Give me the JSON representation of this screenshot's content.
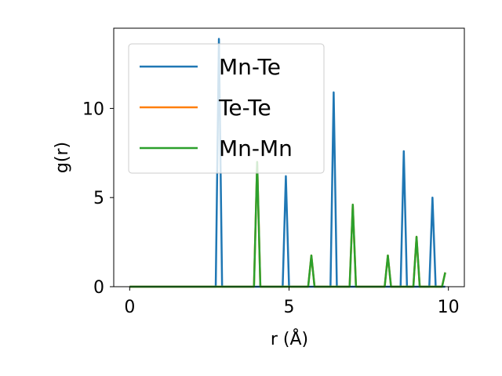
{
  "chart_data": {
    "type": "line",
    "title": "",
    "xlabel": "r (Å)",
    "ylabel": "g(r)",
    "xlim": [
      -0.5,
      10.5
    ],
    "ylim": [
      0,
      14.5
    ],
    "xticks": [
      0,
      5,
      10
    ],
    "yticks": [
      0,
      5,
      10
    ],
    "grid": false,
    "legend_position": "upper-left",
    "series": [
      {
        "name": "Mn-Te",
        "color": "#1f77b4",
        "x": [
          0,
          2.7,
          2.8,
          2.9,
          4.8,
          4.9,
          5.0,
          6.3,
          6.4,
          6.5,
          8.5,
          8.6,
          8.7,
          9.4,
          9.5,
          9.6,
          9.9
        ],
        "y": [
          0,
          0,
          13.9,
          0,
          0,
          6.2,
          0,
          0,
          10.9,
          0,
          0,
          7.6,
          0,
          0,
          5.0,
          0,
          0
        ]
      },
      {
        "name": "Te-Te",
        "color": "#ff7f0e",
        "x": [
          0,
          3.9,
          4.0,
          4.1,
          5.6,
          5.7,
          5.8,
          6.9,
          7.0,
          7.1,
          8.0,
          8.1,
          8.2,
          8.9,
          9.0,
          9.1,
          9.8,
          9.9
        ],
        "y": [
          0,
          0,
          7.0,
          0,
          0,
          1.75,
          0,
          0,
          4.6,
          0,
          0,
          1.75,
          0,
          0,
          2.8,
          0,
          0,
          0.8
        ]
      },
      {
        "name": "Mn-Mn",
        "color": "#2ca02c",
        "x": [
          0,
          3.9,
          4.0,
          4.1,
          5.6,
          5.7,
          5.8,
          6.9,
          7.0,
          7.1,
          8.0,
          8.1,
          8.2,
          8.9,
          9.0,
          9.1,
          9.8,
          9.9
        ],
        "y": [
          0,
          0,
          7.0,
          0,
          0,
          1.75,
          0,
          0,
          4.6,
          0,
          0,
          1.75,
          0,
          0,
          2.8,
          0,
          0,
          0.8
        ]
      }
    ]
  }
}
